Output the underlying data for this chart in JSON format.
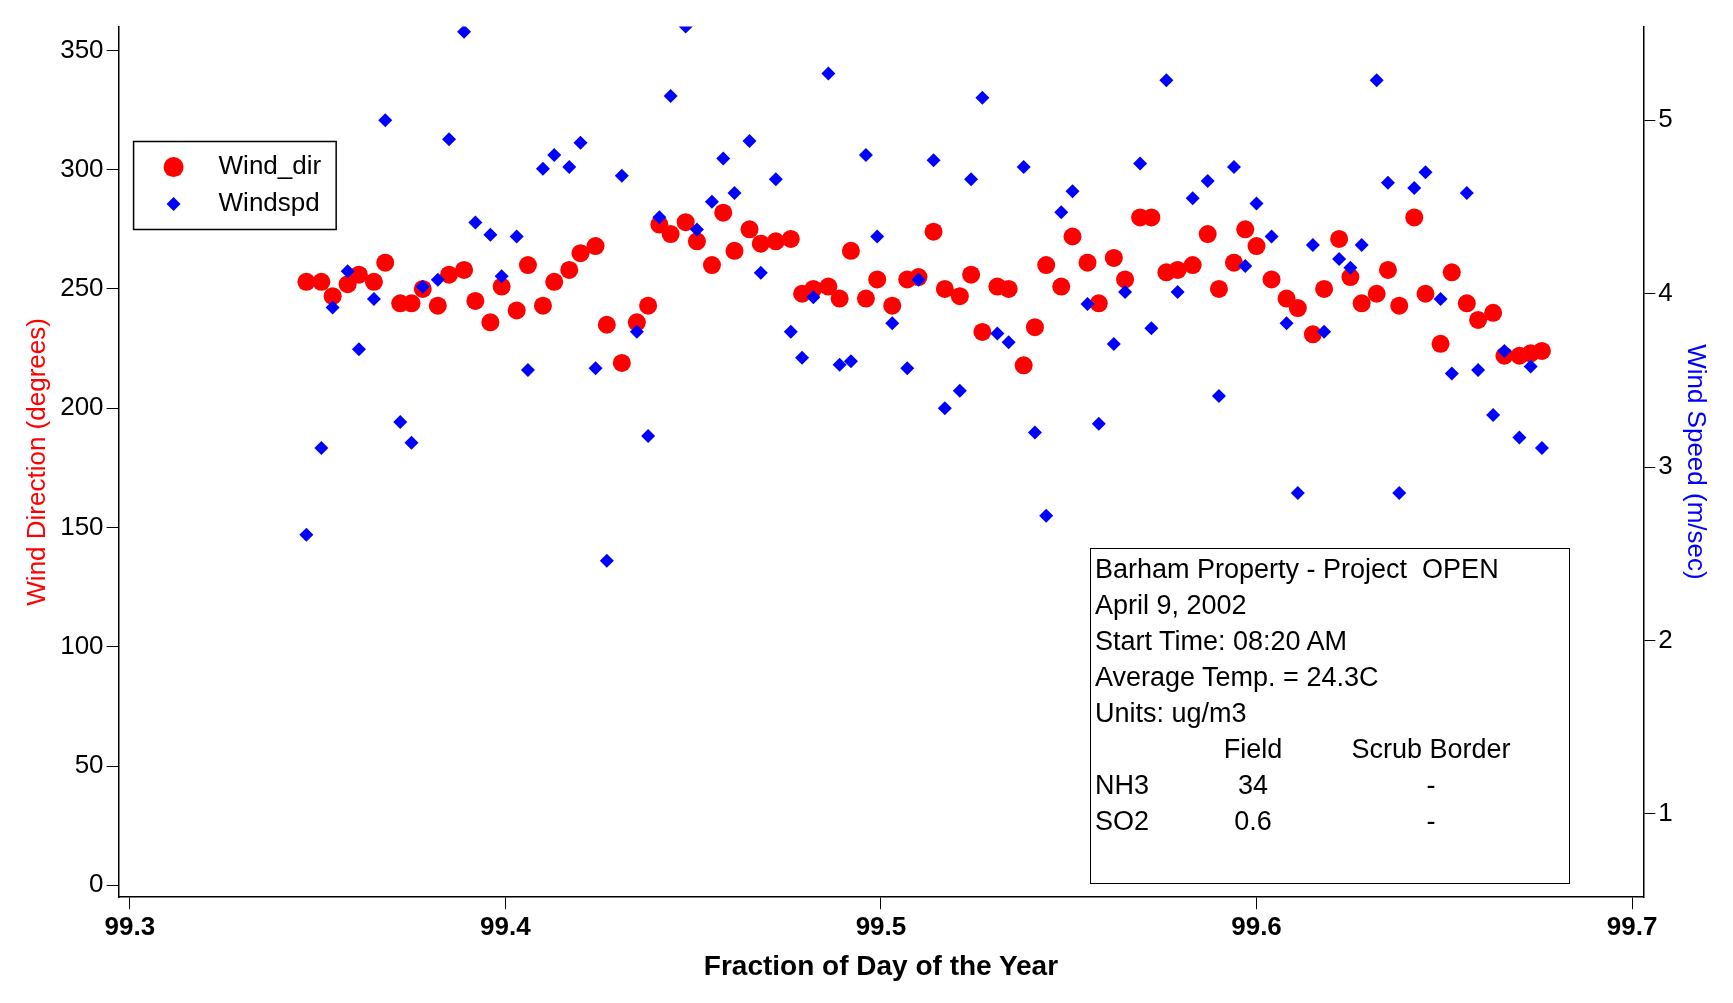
{
  "chart_data": {
    "type": "scatter",
    "xlabel": "Fraction of Day of the Year",
    "ylabel": "Wind Direction (degrees)",
    "y2label": "Wind Speed (m/sec)",
    "x": [
      99.347,
      99.351,
      99.354,
      99.358,
      99.361,
      99.365,
      99.368,
      99.372,
      99.375,
      99.378,
      99.382,
      99.385,
      99.389,
      99.392,
      99.396,
      99.399,
      99.403,
      99.406,
      99.41,
      99.413,
      99.417,
      99.42,
      99.424,
      99.427,
      99.431,
      99.435,
      99.438,
      99.441,
      99.444,
      99.448,
      99.451,
      99.455,
      99.458,
      99.461,
      99.465,
      99.468,
      99.472,
      99.476,
      99.479,
      99.482,
      99.486,
      99.489,
      99.492,
      99.496,
      99.499,
      99.503,
      99.507,
      99.51,
      99.514,
      99.517,
      99.521,
      99.524,
      99.527,
      99.531,
      99.534,
      99.538,
      99.541,
      99.544,
      99.548,
      99.551,
      99.555,
      99.558,
      99.562,
      99.565,
      99.569,
      99.572,
      99.576,
      99.579,
      99.583,
      99.587,
      99.59,
      99.594,
      99.597,
      99.6,
      99.604,
      99.608,
      99.611,
      99.615,
      99.618,
      99.622,
      99.625,
      99.628,
      99.632,
      99.635,
      99.638,
      99.642,
      99.645,
      99.649,
      99.652,
      99.656,
      99.659,
      99.663,
      99.666,
      99.67,
      99.673,
      99.676
    ],
    "series": [
      {
        "name": "Wind_dir",
        "color": "#ff0000",
        "marker": "circle",
        "values": [
          253,
          253,
          247,
          252,
          256,
          253,
          261,
          244,
          244,
          250,
          243,
          256,
          258,
          245,
          236,
          251,
          241,
          260,
          243,
          253,
          258,
          265,
          268,
          235,
          219,
          236,
          243,
          277,
          273,
          278,
          270,
          260,
          282,
          266,
          275,
          269,
          270,
          271,
          248,
          250,
          251,
          246,
          266,
          246,
          254,
          243,
          254,
          255,
          274,
          250,
          247,
          256,
          232,
          251,
          250,
          218,
          234,
          260,
          251,
          272,
          261,
          244,
          263,
          254,
          280,
          280,
          257,
          258,
          260,
          273,
          250,
          261,
          275,
          268,
          254,
          246,
          242,
          231,
          250,
          271,
          255,
          244,
          248,
          258,
          243,
          280,
          248,
          227,
          257,
          244,
          237,
          240,
          222,
          222,
          223,
          224
        ]
      },
      {
        "name": "Windspd",
        "color": "#0000ff",
        "marker": "diamond",
        "axis": "y2",
        "values": [
          2.61,
          3.11,
          3.92,
          4.13,
          3.68,
          3.97,
          5.0,
          3.26,
          3.14,
          4.04,
          4.08,
          4.89,
          5.51,
          4.41,
          4.34,
          4.1,
          4.33,
          3.56,
          4.72,
          4.8,
          4.73,
          4.87,
          3.57,
          2.46,
          4.68,
          3.78,
          3.18,
          4.44,
          5.14,
          5.54,
          4.37,
          4.53,
          4.78,
          4.58,
          4.88,
          4.12,
          4.66,
          3.78,
          3.63,
          3.98,
          5.27,
          3.59,
          3.61,
          4.8,
          4.33,
          3.83,
          3.57,
          4.08,
          4.77,
          3.34,
          3.44,
          4.66,
          5.13,
          3.77,
          3.72,
          4.73,
          3.2,
          2.72,
          4.47,
          4.59,
          3.94,
          3.25,
          3.71,
          4.01,
          4.75,
          3.8,
          5.23,
          4.01,
          4.55,
          4.65,
          3.41,
          4.73,
          4.16,
          4.52,
          4.33,
          3.83,
          2.85,
          4.28,
          3.78,
          4.2,
          4.15,
          4.28,
          5.23,
          4.64,
          2.85,
          4.61,
          4.7,
          3.97,
          3.54,
          4.58,
          3.56,
          3.3,
          3.67,
          3.17,
          3.58,
          3.11
        ]
      }
    ],
    "xlim": [
      99.297,
      99.703
    ],
    "xticks": [
      99.3,
      99.4,
      99.5,
      99.6,
      99.7
    ],
    "ylim": [
      -5,
      360
    ],
    "yticks": [
      0,
      50,
      100,
      150,
      200,
      250,
      300,
      350
    ],
    "y2lim": [
      0.52,
      5.54
    ],
    "y2ticks": [
      1,
      2,
      3,
      4,
      5
    ],
    "grid": false,
    "legend": "top left",
    "annotations": [
      "Barham Property - Project  OPEN",
      "April 9, 2002",
      "Start Time: 08:20 AM",
      "Average Temp. = 24.3C",
      "Units: ug/m3",
      "Field",
      "Scrub Border",
      "NH3",
      "34",
      "-",
      "SO2",
      "0.6",
      "-"
    ]
  }
}
